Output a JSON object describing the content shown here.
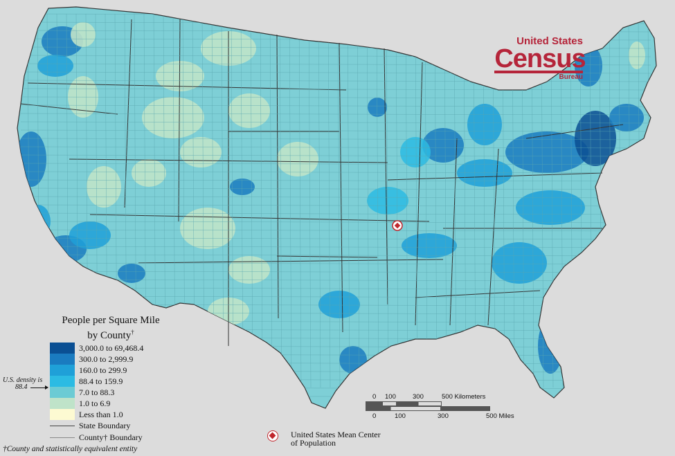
{
  "logo": {
    "line1": "United States",
    "line2": "Census",
    "line3": "Bureau",
    "color": "#b5253a"
  },
  "legend": {
    "title_line1": "People per Square Mile",
    "title_line2": "by County",
    "title_mark": "†",
    "classes": [
      {
        "label": "3,000.0 to 69,468.4",
        "color": "#0a4f93"
      },
      {
        "label": "300.0 to 2,999.9",
        "color": "#1a7bc0"
      },
      {
        "label": "160.0 to 299.9",
        "color": "#1fa0d8"
      },
      {
        "label": "88.4 to 159.9",
        "color": "#2cbbe3"
      },
      {
        "label": "7.0 to 88.3",
        "color": "#6ccbd4"
      },
      {
        "label": "1.0 to 6.9",
        "color": "#bfe3c9"
      },
      {
        "label": "Less than 1.0",
        "color": "#fdfad2"
      }
    ],
    "state_boundary_label": "State Boundary",
    "county_boundary_label": "County† Boundary"
  },
  "us_density": {
    "line1": "U.S. density is",
    "line2": "88.4"
  },
  "footnote": "†County and statistically equivalent entity",
  "scale": {
    "km_label": "500 Kilometers",
    "km_ticks": [
      "0",
      "100",
      "300"
    ],
    "mi_label": "500 Miles",
    "mi_ticks": [
      "0",
      "100",
      "300"
    ]
  },
  "mean_center": {
    "label_line1": "United States Mean Center",
    "label_line2": "of Population"
  },
  "map": {
    "land_color": "#7ecfd6",
    "boundary_color": "#333333",
    "marker_color": "#c0272d"
  }
}
